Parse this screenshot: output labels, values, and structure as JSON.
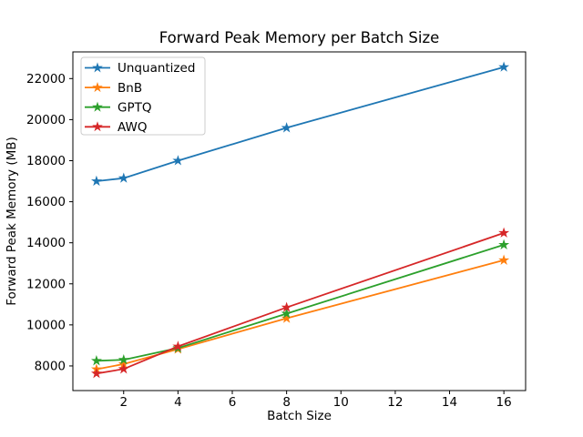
{
  "chart_data": {
    "type": "line",
    "title": "Forward Peak Memory per Batch Size",
    "xlabel": "Batch Size",
    "ylabel": "Forward Peak Memory (MB)",
    "x": [
      1,
      2,
      4,
      8,
      16
    ],
    "series": [
      {
        "name": "Unquantized",
        "color": "#1f77b4",
        "marker": "star",
        "values": [
          17000,
          17150,
          18000,
          19600,
          22560
        ]
      },
      {
        "name": "BnB",
        "color": "#ff7f0e",
        "marker": "star",
        "values": [
          7840,
          8090,
          8820,
          10320,
          13150
        ]
      },
      {
        "name": "GPTQ",
        "color": "#2ca02c",
        "marker": "star",
        "values": [
          8250,
          8300,
          8870,
          10550,
          13900
        ]
      },
      {
        "name": "AWQ",
        "color": "#d62728",
        "marker": "star",
        "values": [
          7630,
          7850,
          8950,
          10850,
          14480
        ]
      }
    ],
    "xticks": [
      2,
      4,
      6,
      8,
      10,
      12,
      14,
      16
    ],
    "yticks": [
      8000,
      10000,
      12000,
      14000,
      16000,
      18000,
      20000,
      22000
    ],
    "xlim": [
      0.13,
      16.8
    ],
    "ylim": [
      6800,
      23300
    ],
    "grid": false,
    "legend": {
      "position": "upper-left",
      "entries": [
        "Unquantized",
        "BnB",
        "GPTQ",
        "AWQ"
      ]
    },
    "colors": {
      "axis": "#000000",
      "background": "#ffffff",
      "legend_border": "#cccccc"
    }
  }
}
